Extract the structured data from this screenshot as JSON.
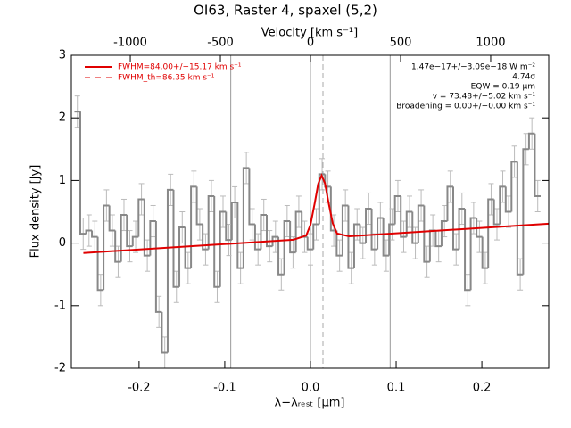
{
  "chart_data": {
    "type": "line",
    "title": "OI63, Raster 4, spaxel (5,2)",
    "xlabel": "λ−λᵣₑₛₜ [μm]",
    "ylabel": "Flux density [Jy]",
    "x2label": "Velocity [km s⁻¹]",
    "xlim": [
      -0.279,
      0.278
    ],
    "ylim": [
      -2,
      3
    ],
    "x2lim": [
      -1327,
      1322
    ],
    "xticks": [
      -0.2,
      -0.1,
      {
        "value": 0,
        "label": "0.0"
      },
      0.1,
      0.2
    ],
    "yticks": [
      -2,
      -1,
      0,
      1,
      2,
      3
    ],
    "x2ticks": [
      -1000,
      -500,
      0,
      500,
      1000
    ],
    "vlines": {
      "values": [
        -0.093,
        0,
        0.093
      ],
      "color": "#999999"
    },
    "center_line": {
      "value": 0.0146,
      "color": "#aaaaaa"
    },
    "series": [
      {
        "style": "steps",
        "color": "#888888",
        "error_color": "#bbbbbb",
        "error": 0.25,
        "x": [
          -0.272,
          -0.2652,
          -0.2584,
          -0.2516,
          -0.2448,
          -0.238,
          -0.2312,
          -0.2244,
          -0.2176,
          -0.2108,
          -0.204,
          -0.1972,
          -0.1904,
          -0.1836,
          -0.1768,
          -0.17,
          -0.1632,
          -0.1564,
          -0.1496,
          -0.1428,
          -0.136,
          -0.1292,
          -0.1224,
          -0.1156,
          -0.1088,
          -0.102,
          -0.0952,
          -0.0884,
          -0.0816,
          -0.0748,
          -0.068,
          -0.0612,
          -0.0544,
          -0.0476,
          -0.0408,
          -0.034,
          -0.0272,
          -0.0204,
          -0.0136,
          -0.0068,
          0,
          0.0068,
          0.0136,
          0.0204,
          0.0272,
          0.034,
          0.0408,
          0.0476,
          0.0544,
          0.0612,
          0.068,
          0.0748,
          0.0816,
          0.0884,
          0.0952,
          0.102,
          0.1088,
          0.1156,
          0.1224,
          0.1292,
          0.136,
          0.1428,
          0.1496,
          0.1564,
          0.1632,
          0.17,
          0.1768,
          0.1836,
          0.1904,
          0.1972,
          0.204,
          0.2108,
          0.2176,
          0.2244,
          0.2312,
          0.238,
          0.2448,
          0.2516,
          0.2584,
          0.2652
        ],
        "values": [
          2.1,
          0.15,
          0.2,
          0.1,
          -0.75,
          0.6,
          0.2,
          -0.3,
          0.45,
          -0.05,
          0.1,
          0.7,
          -0.2,
          0.35,
          -1.1,
          -1.75,
          0.85,
          -0.7,
          0.25,
          -0.4,
          0.9,
          0.3,
          -0.1,
          0.75,
          -0.7,
          0.5,
          0.05,
          0.65,
          -0.4,
          1.2,
          0.3,
          -0.1,
          0.45,
          -0.05,
          0.1,
          -0.5,
          0.35,
          -0.15,
          0.5,
          0.1,
          -0.1,
          0.3,
          1.1,
          0.9,
          0.2,
          -0.2,
          0.6,
          -0.4,
          0.3,
          0.0,
          0.55,
          -0.1,
          0.4,
          -0.2,
          0.3,
          0.75,
          0.1,
          0.5,
          0.0,
          0.6,
          -0.3,
          0.2,
          -0.05,
          0.35,
          0.9,
          -0.1,
          0.55,
          -0.75,
          0.4,
          0.1,
          -0.4,
          0.7,
          0.3,
          0.9,
          0.5,
          1.3,
          -0.5,
          1.5,
          1.75,
          0.75
        ]
      },
      {
        "name": "FWHM=84.00+/−15.17 km s⁻¹",
        "color": "#e00000",
        "x": [
          -0.265,
          -0.02,
          -0.005,
          0.0,
          0.005,
          0.009,
          0.013,
          0.017,
          0.021,
          0.026,
          0.031,
          0.045,
          0.278
        ],
        "values": [
          -0.158,
          0.053,
          0.12,
          0.29,
          0.64,
          0.945,
          1.081,
          0.952,
          0.654,
          0.315,
          0.153,
          0.109,
          0.309
        ]
      }
    ],
    "legend_extra": {
      "name": "FWHM_th=86.35 km s⁻¹",
      "color": "#e00000"
    },
    "annotations": [
      "1.47e−17+/−3.09e−18 W m⁻²",
      "4.74σ",
      "EQW = 0.19 μm",
      "v = 73.48+/−5.02 km s⁻¹",
      "Broadening = 0.00+/−0.00 km s⁻¹"
    ]
  }
}
